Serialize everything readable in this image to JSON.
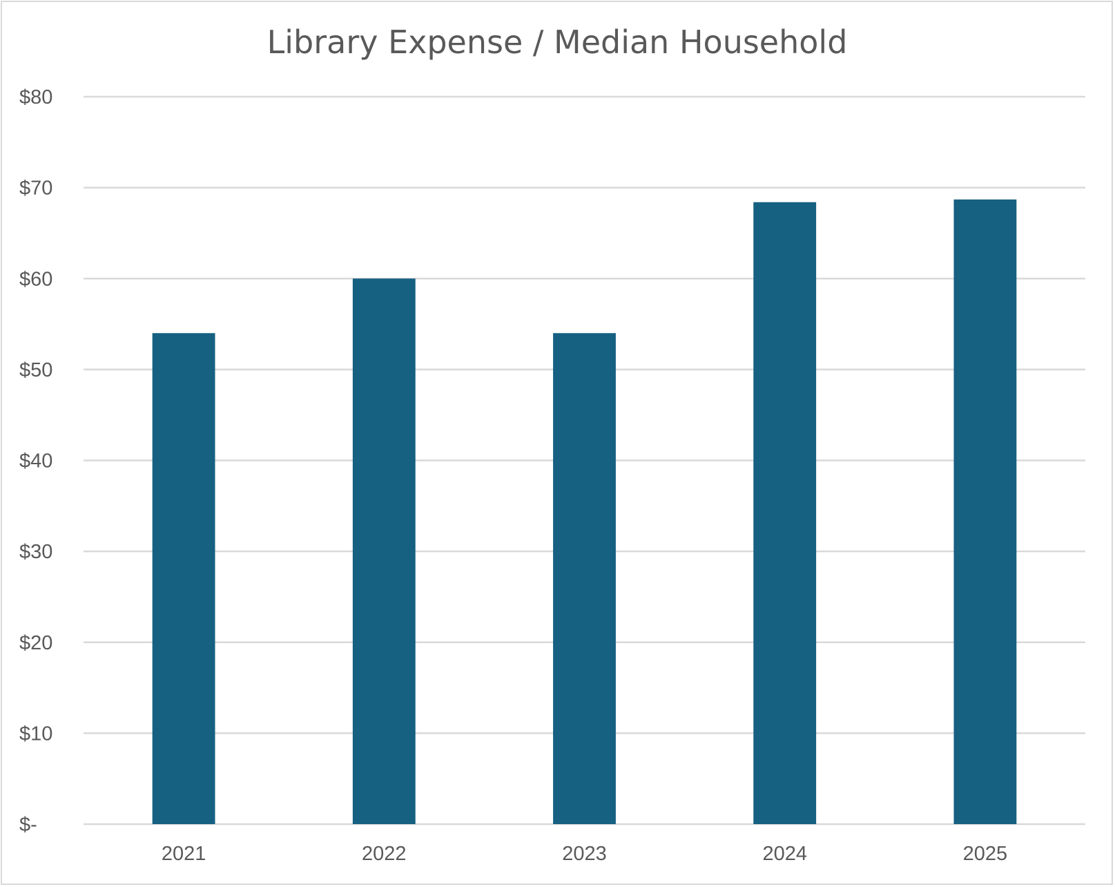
{
  "chart_data": {
    "type": "bar",
    "title": "Library Expense / Median Household",
    "xlabel": "",
    "ylabel": "",
    "categories": [
      "2021",
      "2022",
      "2023",
      "2024",
      "2025"
    ],
    "values": [
      54,
      60,
      54,
      68.4,
      68.7
    ],
    "ylim": [
      0,
      80
    ],
    "yticks": [
      0,
      10,
      20,
      30,
      40,
      50,
      60,
      70,
      80
    ],
    "ytick_labels": [
      "$-",
      "$10",
      "$20",
      "$30",
      "$40",
      "$50",
      "$60",
      "$70",
      "$80"
    ],
    "grid": true,
    "legend": "none",
    "bar_color": "#166082"
  }
}
